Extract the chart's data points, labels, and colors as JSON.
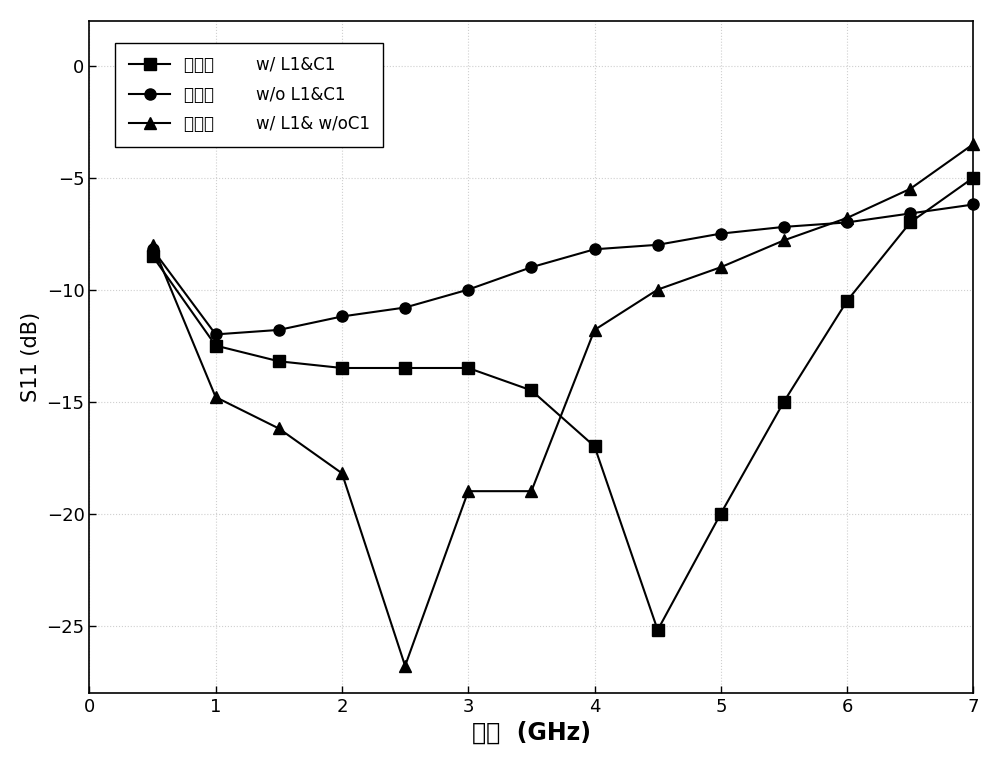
{
  "series": [
    {
      "label_cn": "模拟的",
      "label_en": "w/ L1&C1",
      "marker": "s",
      "x": [
        0.5,
        1.0,
        1.5,
        2.0,
        2.5,
        3.0,
        3.5,
        4.0,
        4.5,
        5.0,
        5.5,
        6.0,
        6.5,
        7.0
      ],
      "y": [
        -8.5,
        -12.5,
        -13.2,
        -13.5,
        -13.5,
        -13.5,
        -14.5,
        -17.0,
        -25.2,
        -20.0,
        -15.0,
        -10.5,
        -7.0,
        -5.0
      ]
    },
    {
      "label_cn": "模拟的",
      "label_en": "w/o L1&C1",
      "marker": "o",
      "x": [
        0.5,
        1.0,
        1.5,
        2.0,
        2.5,
        3.0,
        3.5,
        4.0,
        4.5,
        5.0,
        5.5,
        6.0,
        6.5,
        7.0
      ],
      "y": [
        -8.2,
        -12.0,
        -11.8,
        -11.2,
        -10.8,
        -10.0,
        -9.0,
        -8.2,
        -8.0,
        -7.5,
        -7.2,
        -7.0,
        -6.6,
        -6.2
      ]
    },
    {
      "label_cn": "模拟的",
      "label_en": "w/ L1& w/oC1",
      "marker": "^",
      "x": [
        0.5,
        1.0,
        1.5,
        2.0,
        2.5,
        3.0,
        3.5,
        4.0,
        4.5,
        5.0,
        5.5,
        6.0,
        6.5,
        7.0
      ],
      "y": [
        -8.0,
        -14.8,
        -16.2,
        -18.2,
        -26.8,
        -19.0,
        -19.0,
        -11.8,
        -10.0,
        -9.0,
        -7.8,
        -6.8,
        -5.5,
        -3.5
      ]
    }
  ],
  "xlabel_cn": "频率",
  "xlabel_en": "  (GHz)",
  "ylabel": "S11 (dB)",
  "xlim": [
    0,
    7
  ],
  "ylim": [
    -28,
    2
  ],
  "yticks": [
    0,
    -5,
    -10,
    -15,
    -20,
    -25
  ],
  "xticks": [
    0,
    1,
    2,
    3,
    4,
    5,
    6,
    7
  ],
  "color": "#000000",
  "background": "#ffffff",
  "grid_color": "#b0b0b0",
  "markersize": 8,
  "linewidth": 1.5,
  "legend_fontsize": 12,
  "axis_label_fontsize": 15,
  "tick_fontsize": 13,
  "xlabel_fontsize": 17
}
